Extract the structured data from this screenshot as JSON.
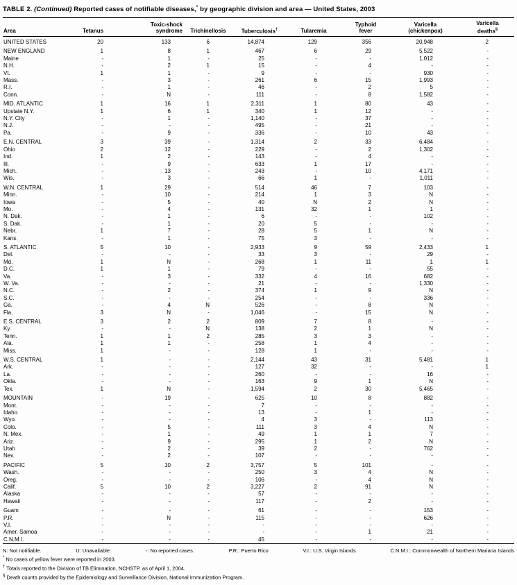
{
  "title": {
    "label": "TABLE 2.",
    "continued": "(Continued)",
    "body": "Reported cases of notifiable diseases,",
    "sup": "*",
    "rest": "by geographic division and area — United States, 2003"
  },
  "table": {
    "columns": [
      {
        "lines": [
          "Area"
        ]
      },
      {
        "lines": [
          "Tetanus"
        ]
      },
      {
        "lines": [
          "Toxic-shock",
          "syndrome"
        ]
      },
      {
        "lines": [
          "Trichinellosis"
        ]
      },
      {
        "lines": [
          "Tuberculosis"
        ],
        "sup": "†"
      },
      {
        "lines": [
          "Tularemia"
        ]
      },
      {
        "lines": [
          "Typhoid",
          "fever"
        ]
      },
      {
        "lines": [
          "Varicella",
          "(chickenpox)"
        ]
      },
      {
        "lines": [
          "Varicella",
          "deaths"
        ],
        "sup": "§"
      }
    ],
    "groups": [
      {
        "rows": [
          [
            "UNITED STATES",
            "20",
            "133",
            "6",
            "14,874",
            "129",
            "356",
            "20,948",
            "2"
          ]
        ]
      },
      {
        "rows": [
          [
            "NEW ENGLAND",
            "1",
            "8",
            "1",
            "467",
            "6",
            "29",
            "5,522",
            "-"
          ],
          [
            "Maine",
            "-",
            "1",
            "-",
            "25",
            "-",
            "-",
            "1,012",
            "-"
          ],
          [
            "N.H.",
            "-",
            "2",
            "1",
            "15",
            "-",
            "4",
            "-",
            "-"
          ],
          [
            "Vt.",
            "1",
            "1",
            "-",
            "9",
            "-",
            "-",
            "930",
            "-"
          ],
          [
            "Mass.",
            "-",
            "3",
            "-",
            "261",
            "6",
            "15",
            "1,993",
            "-"
          ],
          [
            "R.I.",
            "-",
            "1",
            "-",
            "46",
            "-",
            "2",
            "5",
            "-"
          ],
          [
            "Conn.",
            "-",
            "N",
            "-",
            "111",
            "-",
            "8",
            "1,582",
            "-"
          ]
        ]
      },
      {
        "rows": [
          [
            "MID. ATLANTIC",
            "1",
            "16",
            "1",
            "2,311",
            "1",
            "80",
            "43",
            "-"
          ],
          [
            "Upstate N.Y.",
            "1",
            "6",
            "1",
            "340",
            "1",
            "12",
            "-",
            "-"
          ],
          [
            "N.Y. City",
            "-",
            "1",
            "-",
            "1,140",
            "-",
            "37",
            "-",
            "-"
          ],
          [
            "N.J.",
            "-",
            "-",
            "-",
            "495",
            "-",
            "21",
            "-",
            "-"
          ],
          [
            "Pa.",
            "-",
            "9",
            "-",
            "336",
            "-",
            "10",
            "43",
            "-"
          ]
        ]
      },
      {
        "rows": [
          [
            "E.N. CENTRAL",
            "3",
            "39",
            "-",
            "1,314",
            "2",
            "33",
            "6,484",
            "-"
          ],
          [
            "Ohio",
            "2",
            "12",
            "-",
            "229",
            "-",
            "2",
            "1,302",
            "-"
          ],
          [
            "Ind.",
            "1",
            "2",
            "-",
            "143",
            "-",
            "4",
            "-",
            "-"
          ],
          [
            "Ill.",
            "-",
            "9",
            "-",
            "633",
            "1",
            "17",
            "-",
            "-"
          ],
          [
            "Mich.",
            "-",
            "13",
            "-",
            "243",
            "-",
            "10",
            "4,171",
            "-"
          ],
          [
            "Wis.",
            "-",
            "3",
            "-",
            "66",
            "1",
            "-",
            "1,011",
            "-"
          ]
        ]
      },
      {
        "rows": [
          [
            "W.N. CENTRAL",
            "1",
            "29",
            "-",
            "514",
            "46",
            "7",
            "103",
            "-"
          ],
          [
            "Minn.",
            "-",
            "10",
            "-",
            "214",
            "1",
            "3",
            "N",
            "-"
          ],
          [
            "Iowa",
            "-",
            "5",
            "-",
            "40",
            "N",
            "2",
            "N",
            "-"
          ],
          [
            "Mo.",
            "-",
            "4",
            "-",
            "131",
            "32",
            "1",
            "1",
            "-"
          ],
          [
            "N. Dak.",
            "-",
            "1",
            "-",
            "6",
            "-",
            "-",
            "102",
            "-"
          ],
          [
            "S. Dak.",
            "-",
            "1",
            "-",
            "20",
            "5",
            "-",
            "-",
            "-"
          ],
          [
            "Nebr.",
            "1",
            "7",
            "-",
            "28",
            "5",
            "1",
            "N",
            "-"
          ],
          [
            "Kans.",
            "-",
            "1",
            "-",
            "75",
            "3",
            "-",
            "-",
            "-"
          ]
        ]
      },
      {
        "rows": [
          [
            "S. ATLANTIC",
            "5",
            "10",
            "-",
            "2,933",
            "9",
            "59",
            "2,433",
            "1"
          ],
          [
            "Del.",
            "-",
            "-",
            "-",
            "33",
            "3",
            "-",
            "29",
            "-"
          ],
          [
            "Md.",
            "1",
            "N",
            "-",
            "268",
            "1",
            "11",
            "1",
            "1"
          ],
          [
            "D.C.",
            "1",
            "1",
            "-",
            "79",
            "-",
            "-",
            "55",
            "-"
          ],
          [
            "Va.",
            "-",
            "3",
            "-",
            "332",
            "4",
            "16",
            "682",
            "-"
          ],
          [
            "W. Va.",
            "-",
            "-",
            "-",
            "21",
            "-",
            "-",
            "1,330",
            "-"
          ],
          [
            "N.C.",
            "-",
            "2",
            "-",
            "374",
            "1",
            "9",
            "N",
            "-"
          ],
          [
            "S.C.",
            "-",
            "-",
            "-",
            "254",
            "-",
            "-",
            "336",
            "-"
          ],
          [
            "Ga.",
            "-",
            "4",
            "N",
            "526",
            "-",
            "8",
            "N",
            "-"
          ],
          [
            "Fla.",
            "3",
            "N",
            "-",
            "1,046",
            "-",
            "15",
            "N",
            "-"
          ]
        ]
      },
      {
        "rows": [
          [
            "E.S. CENTRAL",
            "3",
            "2",
            "2",
            "809",
            "7",
            "8",
            "-",
            "-"
          ],
          [
            "Ky.",
            "-",
            "-",
            "N",
            "138",
            "2",
            "1",
            "N",
            "-"
          ],
          [
            "Tenn.",
            "1",
            "1",
            "2",
            "285",
            "3",
            "3",
            "-",
            "-"
          ],
          [
            "Ala.",
            "1",
            "1",
            "-",
            "258",
            "1",
            "4",
            "-",
            "-"
          ],
          [
            "Miss.",
            "1",
            "-",
            "-",
            "128",
            "1",
            "-",
            "-",
            "-"
          ]
        ]
      },
      {
        "rows": [
          [
            "W.S. CENTRAL",
            "1",
            "-",
            "-",
            "2,144",
            "43",
            "31",
            "5,481",
            "1"
          ],
          [
            "Ark.",
            "-",
            "-",
            "-",
            "127",
            "32",
            "-",
            "-",
            "1"
          ],
          [
            "La.",
            "-",
            "-",
            "-",
            "260",
            "-",
            "-",
            "16",
            "-"
          ],
          [
            "Okla.",
            "-",
            "-",
            "-",
            "163",
            "9",
            "1",
            "N",
            "-"
          ],
          [
            "Tex.",
            "1",
            "N",
            "-",
            "1,594",
            "2",
            "30",
            "5,465",
            "-"
          ]
        ]
      },
      {
        "rows": [
          [
            "MOUNTAIN",
            "-",
            "19",
            "-",
            "625",
            "10",
            "8",
            "882",
            "-"
          ],
          [
            "Mont.",
            "-",
            "-",
            "-",
            "7",
            "-",
            "-",
            "-",
            "-"
          ],
          [
            "Idaho",
            "-",
            "-",
            "-",
            "13",
            "-",
            "1",
            "-",
            "-"
          ],
          [
            "Wyo.",
            "-",
            "-",
            "-",
            "4",
            "3",
            "-",
            "113",
            "-"
          ],
          [
            "Colo.",
            "-",
            "5",
            "-",
            "111",
            "3",
            "4",
            "N",
            "-"
          ],
          [
            "N. Mex.",
            "-",
            "1",
            "-",
            "49",
            "1",
            "1",
            "7",
            "-"
          ],
          [
            "Ariz.",
            "-",
            "9",
            "-",
            "295",
            "1",
            "2",
            "N",
            "-"
          ],
          [
            "Utah",
            "-",
            "2",
            "-",
            "39",
            "2",
            "-",
            "762",
            "-"
          ],
          [
            "Nev.",
            "-",
            "2",
            "-",
            "107",
            "-",
            "-",
            "-",
            "-"
          ]
        ]
      },
      {
        "rows": [
          [
            "PACIFIC",
            "5",
            "10",
            "2",
            "3,757",
            "5",
            "101",
            "-",
            "-"
          ],
          [
            "Wash.",
            "-",
            "-",
            "-",
            "250",
            "3",
            "4",
            "N",
            "-"
          ],
          [
            "Oreg.",
            "-",
            "-",
            "-",
            "106",
            "-",
            "4",
            "N",
            "-"
          ],
          [
            "Calif.",
            "5",
            "10",
            "2",
            "3,227",
            "2",
            "91",
            "N",
            "-"
          ],
          [
            "Alaska",
            "-",
            "-",
            "-",
            "57",
            "-",
            "-",
            "-",
            "-"
          ],
          [
            "Hawaii",
            "-",
            "-",
            "-",
            "117",
            "-",
            "2",
            "-",
            "-"
          ]
        ]
      },
      {
        "rows": [
          [
            "Guam",
            "-",
            "-",
            "-",
            "61",
            "-",
            "-",
            "153",
            "-"
          ],
          [
            "P.R.",
            "-",
            "N",
            "-",
            "115",
            "-",
            "-",
            "626",
            "-"
          ],
          [
            "V.I.",
            "-",
            "-",
            "-",
            "-",
            "-",
            "-",
            "-",
            "-"
          ],
          [
            "Amer. Samoa",
            "-",
            "-",
            "-",
            "-",
            "-",
            "1",
            "21",
            "-"
          ],
          [
            "C.N.M.I.",
            "-",
            "-",
            "-",
            "45",
            "-",
            "-",
            "-",
            "-"
          ]
        ]
      }
    ]
  },
  "footnotes": {
    "legend": [
      "N: Not notifiable.",
      "U: Unavailable.",
      "-: No reported cases.",
      "P.R.: Puerto Rico",
      "V.I.: U.S. Virgin Islands",
      "C.N.M.I.: Commonwealth of Northern Mariana Islands"
    ],
    "notes": [
      {
        "sup": "*",
        "text": "No cases of yellow fever were reported in 2003."
      },
      {
        "sup": "†",
        "text": "Totals reported to the Division of TB Elimination, NCHSTP, as of April 1, 2004."
      },
      {
        "sup": "§",
        "text": "Death counts provided by the Epidemiology and Surveillance Division, National Immunization Program."
      }
    ]
  }
}
